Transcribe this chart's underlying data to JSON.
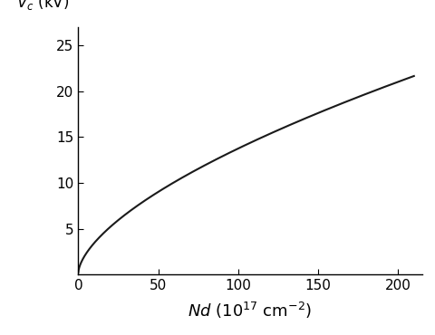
{
  "xlabel": "$\\mathit{Nd}$ (10$^{17}$ cm$^{-2}$)",
  "ylabel_text": "$\\mathit{V_c}$ (kV)",
  "xlim": [
    0,
    215
  ],
  "ylim": [
    0,
    27
  ],
  "xticks": [
    0,
    50,
    100,
    150,
    200
  ],
  "yticks": [
    5,
    10,
    15,
    20,
    25
  ],
  "line_color": "#1a1a1a",
  "line_width": 1.5,
  "background_color": "#ffffff",
  "curve_a": 0.778,
  "curve_b": 0.222,
  "curve_power": 0.62,
  "x_end": 210
}
